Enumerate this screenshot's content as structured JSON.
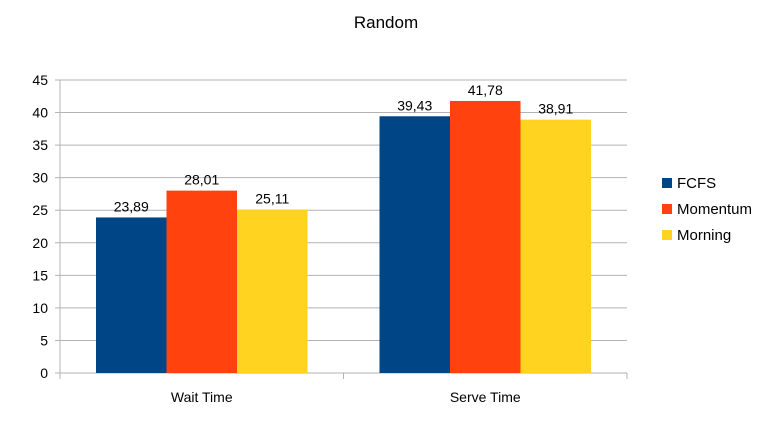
{
  "chart_data": {
    "type": "bar",
    "title": "Random",
    "categories": [
      "Wait Time",
      "Serve Time"
    ],
    "series": [
      {
        "name": "FCFS",
        "color": "#004586",
        "values": [
          23.89,
          39.43
        ],
        "labels": [
          "23,89",
          "39,43"
        ]
      },
      {
        "name": "Momentum",
        "color": "#ff420e",
        "values": [
          28.01,
          41.78
        ],
        "labels": [
          "28,01",
          "41,78"
        ]
      },
      {
        "name": "Morning",
        "color": "#ffd320",
        "values": [
          25.11,
          38.91
        ],
        "labels": [
          "25,11",
          "38,91"
        ]
      }
    ],
    "ylim": [
      0,
      45
    ],
    "yticks": [
      0,
      5,
      10,
      15,
      20,
      25,
      30,
      35,
      40,
      45
    ],
    "grid": true,
    "legend_position": "right"
  }
}
